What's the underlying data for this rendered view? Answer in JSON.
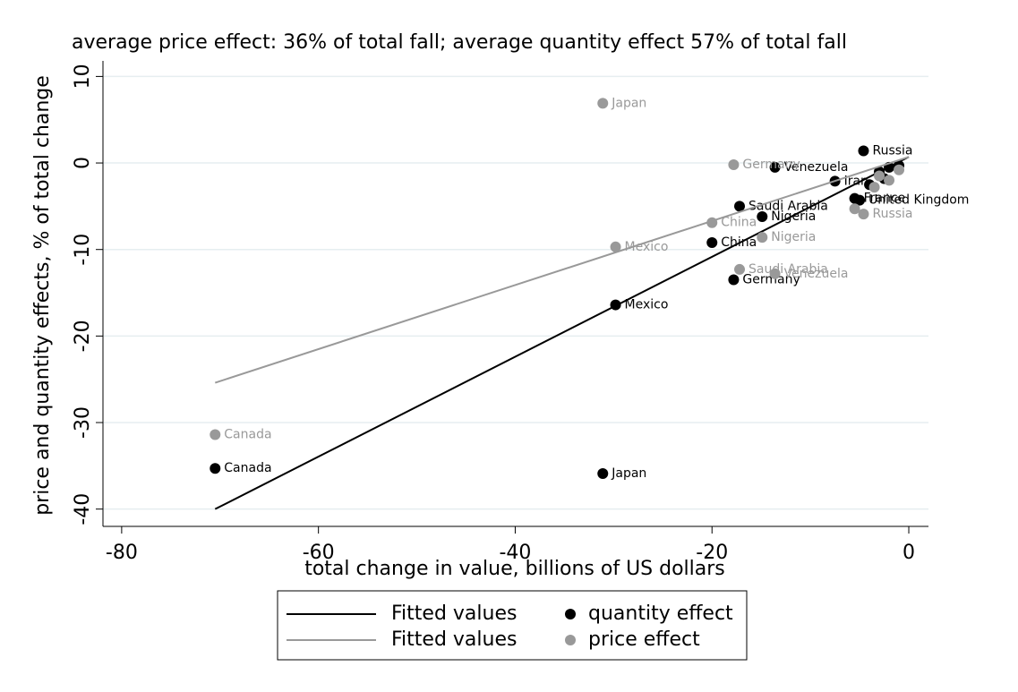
{
  "chart_data": {
    "type": "scatter",
    "title": "average price effect: 36% of total fall; average quantity effect 57% of total fall",
    "x_label": "total change in value, billions of US dollars",
    "y_label": "price and quantity effects, % of total change",
    "xlim": [
      -81.9,
      2
    ],
    "ylim": [
      -42,
      11.8
    ],
    "xticks": [
      -80,
      -60,
      -40,
      -20,
      0
    ],
    "yticks": [
      -40,
      -30,
      -20,
      -10,
      0,
      10
    ],
    "grid": true,
    "series": [
      {
        "name": "Fitted values",
        "type": "line",
        "color": "#000000",
        "x": [
          -70.5,
          0
        ],
        "values": [
          -40,
          0.7
        ]
      },
      {
        "name": "quantity effect",
        "type": "scatter",
        "color": "#000000",
        "x": [
          -70.5,
          -31.1,
          -29.8,
          -17.8,
          -20.0,
          -14.9,
          -17.2,
          -13.6,
          -4.6,
          -5.5,
          -5.0,
          -7.5,
          -3,
          -2,
          -1,
          -4,
          -2.5
        ],
        "values": [
          -35.3,
          -35.9,
          -16.4,
          -13.5,
          -9.2,
          -6.2,
          -5.0,
          -0.5,
          1.4,
          -4.1,
          -4.3,
          -2.1,
          -1,
          -0.5,
          -0.3,
          -2.5,
          -1.8
        ],
        "labels": [
          "Canada",
          "Japan",
          "Mexico",
          "Germany",
          "China",
          "Nigeria",
          "Saudi Arabia",
          "Venezuela",
          "Russia",
          "France",
          "United Kingdom",
          "Iran",
          null,
          null,
          null,
          null,
          null
        ]
      },
      {
        "name": "Fitted values",
        "type": "line",
        "color": "#999999",
        "x": [
          -70.5,
          0
        ],
        "values": [
          -25.4,
          0.7
        ]
      },
      {
        "name": "price effect",
        "type": "scatter",
        "color": "#999999",
        "x": [
          -70.5,
          -31.1,
          -29.8,
          -20.0,
          -14.9,
          -17.2,
          -13.6,
          -17.8,
          -4.6,
          -3,
          -2,
          -1,
          -5.5,
          -3.5
        ],
        "values": [
          -31.4,
          6.9,
          -9.7,
          -6.9,
          -8.6,
          -12.3,
          -12.8,
          -0.2,
          -5.9,
          -1.5,
          -2,
          -0.8,
          -5.3,
          -2.8
        ],
        "labels": [
          "Canada",
          "Japan",
          "Mexico",
          "China",
          "Nigeria",
          "Saudi Arabia",
          "Venezuela",
          "Germany",
          "Russia",
          null,
          null,
          null,
          null,
          null
        ]
      }
    ]
  }
}
